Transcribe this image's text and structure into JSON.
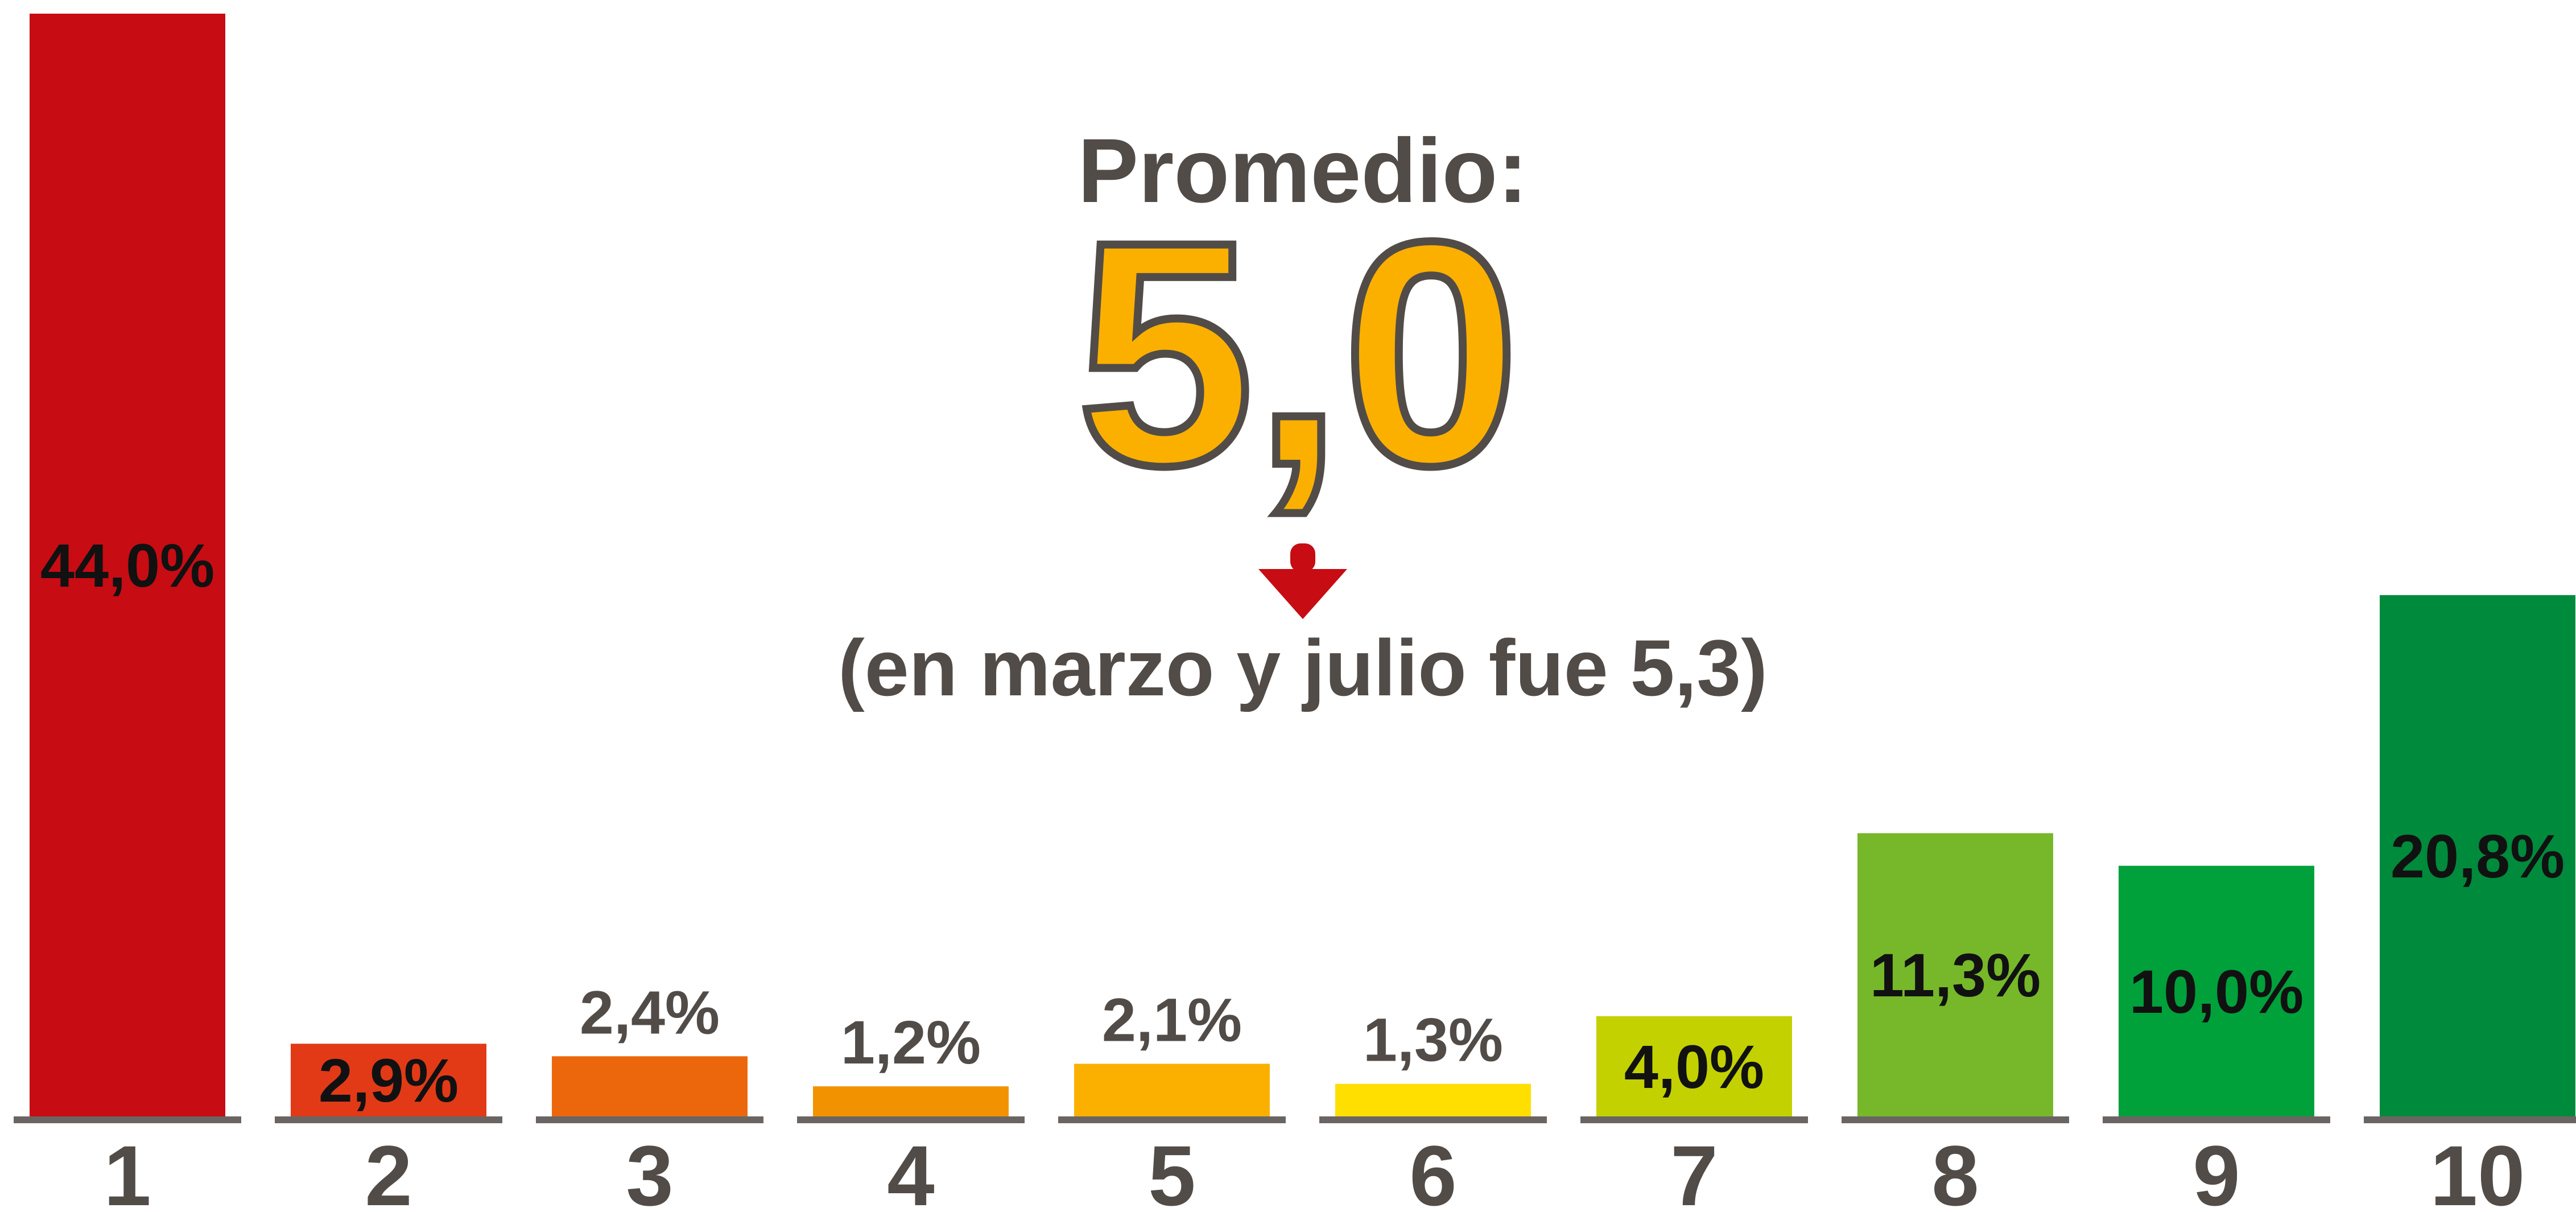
{
  "chart_data": {
    "type": "bar",
    "categories": [
      "1",
      "2",
      "3",
      "4",
      "5",
      "6",
      "7",
      "8",
      "9",
      "10"
    ],
    "values": [
      44.0,
      2.9,
      2.4,
      1.2,
      2.1,
      1.3,
      4.0,
      11.3,
      10.0,
      20.8
    ],
    "value_labels": [
      "44,0%",
      "2,9%",
      "2,4%",
      "1,2%",
      "2,1%",
      "1,3%",
      "4,0%",
      "11,3%",
      "10,0%",
      "20,8%"
    ],
    "colors": [
      "#c70c13",
      "#e23a17",
      "#ec670c",
      "#f39200",
      "#fbb000",
      "#ffdf00",
      "#c3d100",
      "#76b82a",
      "#00a03b",
      "#008a3c"
    ],
    "annotations": [
      "Promedio:",
      "5,0",
      "(en marzo y julio fue 5,3)"
    ]
  }
}
